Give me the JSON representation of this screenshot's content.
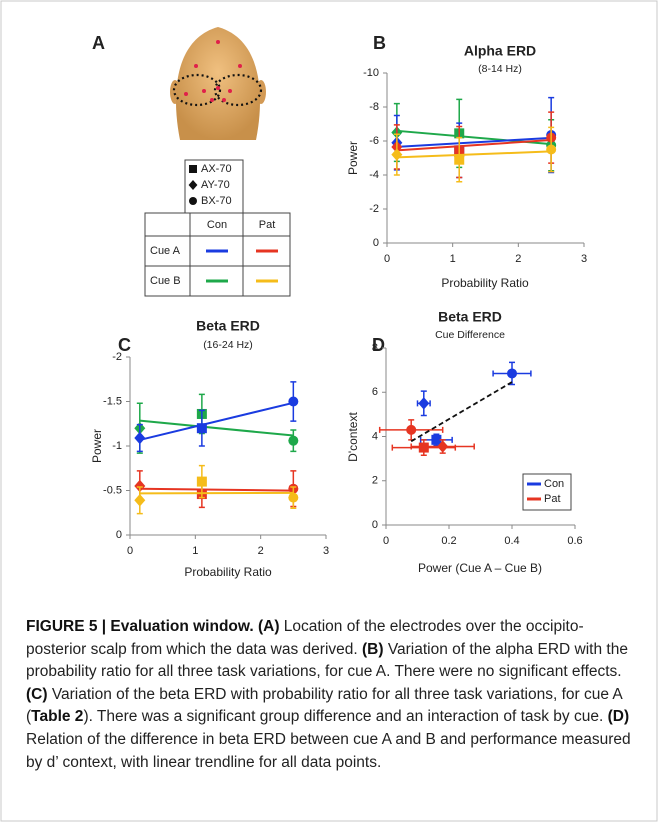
{
  "panel_a": {
    "letter": "A",
    "markers": [
      {
        "label": "AX-70",
        "shape": "square"
      },
      {
        "label": "AY-70",
        "shape": "diamond"
      },
      {
        "label": "BX-70",
        "shape": "circle"
      }
    ],
    "table": {
      "columns": [
        "Con",
        "Pat"
      ],
      "rows": [
        {
          "label": "Cue A",
          "colors": [
            "#1a3be0",
            "#e63522"
          ]
        },
        {
          "label": "Cue B",
          "colors": [
            "#1ea84a",
            "#f5bc1a"
          ]
        }
      ]
    }
  },
  "chart_data": [
    {
      "type": "scatter",
      "letter": "B",
      "title": "Alpha ERD",
      "subtitle": "(8-14 Hz)",
      "x_label": "Probability Ratio",
      "y_label": "Power",
      "x": [
        0.15,
        1.1,
        2.5
      ],
      "markers": [
        "diamond",
        "square",
        "circle"
      ],
      "trendline": true,
      "xlim": [
        0,
        3
      ],
      "xticks": [
        0,
        1,
        2,
        3
      ],
      "ylim": [
        0,
        -10
      ],
      "yticks": [
        -10,
        -8,
        -6,
        -4,
        -2,
        0
      ],
      "series": [
        {
          "color": "#1ea84a",
          "values": [
            -6.5,
            -6.45,
            -5.75
          ],
          "errors": [
            1.7,
            2.0,
            1.5
          ]
        },
        {
          "color": "#1a3be0",
          "values": [
            -5.9,
            -5.45,
            -6.35
          ],
          "errors": [
            1.6,
            1.6,
            2.2
          ]
        },
        {
          "color": "#e63522",
          "values": [
            -5.65,
            -5.35,
            -6.2
          ],
          "errors": [
            1.3,
            1.5,
            1.5
          ]
        },
        {
          "color": "#f5bc1a",
          "values": [
            -5.2,
            -4.9,
            -5.5
          ],
          "errors": [
            1.2,
            1.3,
            1.3
          ]
        }
      ]
    },
    {
      "type": "scatter",
      "letter": "C",
      "title": "Beta ERD",
      "subtitle": "(16-24 Hz)",
      "x_label": "Probability Ratio",
      "y_label": "Power",
      "x": [
        0.15,
        1.1,
        2.5
      ],
      "markers": [
        "diamond",
        "square",
        "circle"
      ],
      "trendline": true,
      "xlim": [
        0,
        3
      ],
      "xticks": [
        0,
        1,
        2,
        3
      ],
      "ylim": [
        0,
        -2
      ],
      "yticks": [
        -2,
        -1.5,
        -1,
        -0.5,
        0
      ],
      "series": [
        {
          "color": "#1ea84a",
          "values": [
            -1.2,
            -1.36,
            -1.06
          ],
          "errors": [
            0.28,
            0.22,
            0.12
          ]
        },
        {
          "color": "#1a3be0",
          "values": [
            -1.09,
            -1.2,
            -1.5
          ],
          "errors": [
            0.15,
            0.2,
            0.22
          ]
        },
        {
          "color": "#e63522",
          "values": [
            -0.55,
            -0.46,
            -0.52
          ],
          "errors": [
            0.17,
            0.15,
            0.2
          ]
        },
        {
          "color": "#f5bc1a",
          "values": [
            -0.39,
            -0.6,
            -0.42
          ],
          "errors": [
            0.15,
            0.18,
            0.12
          ]
        }
      ]
    },
    {
      "type": "scatter",
      "letter": "D",
      "title": "Beta ERD",
      "subtitle": "Cue Difference",
      "x_label": "Power (Cue A – Cue B)",
      "y_label": "D'context",
      "trendline_all": true,
      "legend": "lower right",
      "xlim": [
        0,
        0.6
      ],
      "xticks": [
        0,
        0.2,
        0.4,
        0.6
      ],
      "ylim": [
        0,
        8
      ],
      "yticks": [
        0,
        2,
        4,
        6,
        8
      ],
      "series": [
        {
          "name": "Con",
          "color": "#1a3be0",
          "markers": [
            "diamond",
            "square",
            "circle"
          ],
          "x": [
            0.12,
            0.16,
            0.4
          ],
          "values": [
            5.5,
            3.85,
            6.85
          ],
          "xerr": [
            0.02,
            0.05,
            0.06
          ],
          "yerr": [
            0.55,
            0.25,
            0.5
          ]
        },
        {
          "name": "Pat",
          "color": "#e63522",
          "markers": [
            "circle",
            "square",
            "diamond"
          ],
          "x": [
            0.08,
            0.12,
            0.18
          ],
          "values": [
            4.3,
            3.5,
            3.55
          ],
          "xerr": [
            0.1,
            0.1,
            0.1
          ],
          "yerr": [
            0.45,
            0.35,
            0.3
          ]
        }
      ]
    }
  ],
  "caption": [
    {
      "text": "FIGURE 5 | Evaluation window. (A)",
      "bold": true
    },
    {
      "text": " Location of the electrodes over the occipito-posterior scalp from which the data was derived. ",
      "bold": false
    },
    {
      "text": "(B)",
      "bold": true
    },
    {
      "text": " Variation of the alpha ERD with the probability ratio for all three task variations, for cue A. There were no significant effects. ",
      "bold": false
    },
    {
      "text": "(C)",
      "bold": true
    },
    {
      "text": " Variation of the beta ERD with probability ratio for all three task variations, for cue A (",
      "bold": false
    },
    {
      "text": "Table 2",
      "bold": true
    },
    {
      "text": "). There was a significant group difference and an interaction of task by cue. ",
      "bold": false
    },
    {
      "text": "(D)",
      "bold": true
    },
    {
      "text": " Relation of the difference in beta ERD between cue A and B and performance measured by d’ context, with linear trendline for all data points.",
      "bold": false
    }
  ]
}
